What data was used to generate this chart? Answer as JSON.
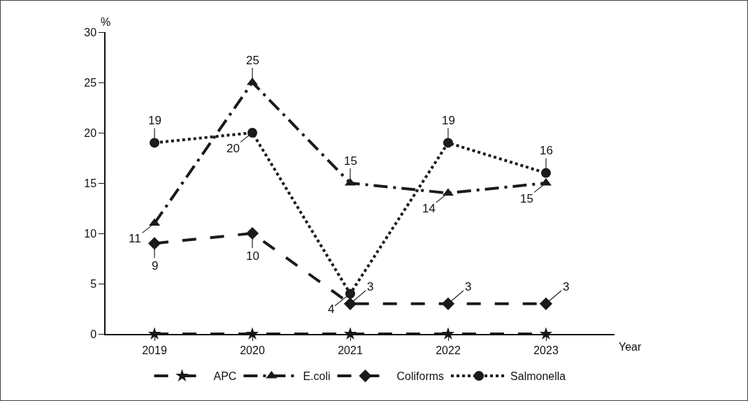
{
  "chart_data": {
    "type": "line",
    "xlabel": "Year",
    "ylabel": "%",
    "categories": [
      "2019",
      "2020",
      "2021",
      "2022",
      "2023"
    ],
    "series": [
      {
        "name": "APC",
        "color": "#1a1a1a",
        "marker": "star",
        "line_style": "dashed",
        "values": [
          0,
          0,
          0,
          0,
          0
        ]
      },
      {
        "name": "E.coli",
        "color": "#1a1a1a",
        "marker": "triangle",
        "line_style": "dashdot",
        "values": [
          11,
          25,
          15,
          14,
          15
        ],
        "value_labels": [
          "11",
          "25",
          "15",
          "14",
          "15"
        ]
      },
      {
        "name": "Coliforms",
        "color": "#1a1a1a",
        "marker": "diamond",
        "line_style": "dashed",
        "values": [
          9,
          10,
          3,
          3,
          3
        ],
        "value_labels": [
          "9",
          "10",
          "3",
          "3",
          "3"
        ]
      },
      {
        "name": "Salmonella",
        "color": "#1a1a1a",
        "marker": "circle",
        "line_style": "dotted",
        "values": [
          19,
          20,
          4,
          19,
          16
        ],
        "value_labels": [
          "19",
          "20",
          "4",
          "19",
          "16"
        ]
      }
    ],
    "ylim": [
      0,
      30
    ],
    "yticks": [
      0,
      5,
      10,
      15,
      20,
      25,
      30
    ],
    "grid": false,
    "legend": "bottom"
  }
}
